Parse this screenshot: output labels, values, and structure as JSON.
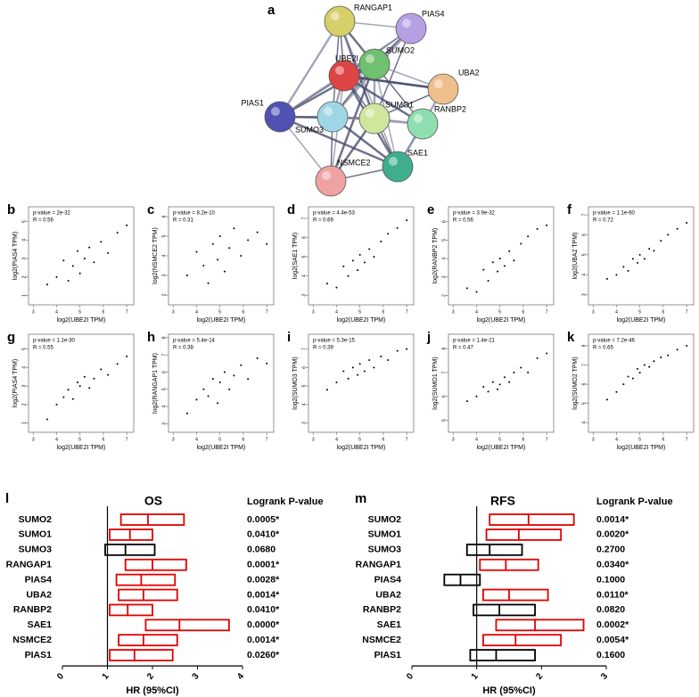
{
  "network": {
    "panel": "a",
    "nodes": [
      {
        "label": "RANGAP1"
      },
      {
        "label": "PIAS4"
      },
      {
        "label": "SUMO2"
      },
      {
        "label": "UBE2I"
      },
      {
        "label": "UBA2"
      },
      {
        "label": "PIAS1"
      },
      {
        "label": "SUMO3"
      },
      {
        "label": "SUMO1"
      },
      {
        "label": "RANBP2"
      },
      {
        "label": "NSMCE2"
      },
      {
        "label": "SAE1"
      }
    ]
  },
  "chart_data": [
    {
      "type": "scatter",
      "panel": "b",
      "annotations": [
        "p-value = 2e-32",
        "R = 0.56"
      ],
      "x_label": "log2(UBE2I TPM)",
      "y_label": "log2(PIAS4 TPM)",
      "xlim": [
        2.8,
        7.3
      ],
      "xticks": [
        3,
        4,
        5,
        6,
        7
      ],
      "ylim": [
        0.5,
        5.8
      ],
      "yticks": [
        1,
        2,
        3,
        4,
        5
      ],
      "x": [
        3.6,
        4.0,
        4.3,
        4.5,
        4.7,
        4.9,
        5.0,
        5.2,
        5.4,
        5.6,
        5.9,
        6.2,
        6.6,
        7.0
      ],
      "values": [
        1.6,
        2.0,
        2.9,
        1.8,
        2.6,
        3.4,
        2.2,
        3.0,
        3.6,
        2.8,
        3.9,
        3.3,
        4.4,
        4.8
      ]
    },
    {
      "type": "scatter",
      "panel": "c",
      "annotations": [
        "p-value = 8.2e-10",
        "R = 0.31"
      ],
      "x_label": "log2(UBE2I TPM)",
      "y_label": "log2(NSMCE2 TPM)",
      "xlim": [
        2.8,
        7.3
      ],
      "xticks": [
        3,
        4,
        5,
        6,
        7
      ],
      "ylim": [
        1.5,
        6.5
      ],
      "yticks": [
        2,
        3,
        4,
        5,
        6
      ],
      "x": [
        3.6,
        4.0,
        4.3,
        4.5,
        4.7,
        4.9,
        5.0,
        5.2,
        5.4,
        5.6,
        5.9,
        6.2,
        6.6,
        7.0
      ],
      "values": [
        3.0,
        4.2,
        3.5,
        2.6,
        4.6,
        3.8,
        5.0,
        3.2,
        4.4,
        5.4,
        4.0,
        4.8,
        5.2,
        4.6
      ]
    },
    {
      "type": "scatter",
      "panel": "d",
      "annotations": [
        "p-value = 4.4e-53",
        "R = 0.69"
      ],
      "x_label": "log2(UBE2I TPM)",
      "y_label": "log2(SAE1 TPM)",
      "xlim": [
        2.8,
        7.3
      ],
      "xticks": [
        3,
        4,
        5,
        6,
        7
      ],
      "ylim": [
        2.5,
        7.6
      ],
      "yticks": [
        3,
        4,
        5,
        6,
        7
      ],
      "x": [
        3.6,
        4.0,
        4.3,
        4.5,
        4.7,
        4.9,
        5.0,
        5.2,
        5.4,
        5.6,
        5.9,
        6.2,
        6.6,
        7.0
      ],
      "values": [
        3.6,
        3.4,
        4.5,
        4.0,
        4.8,
        4.3,
        5.1,
        4.7,
        5.4,
        5.0,
        5.8,
        6.2,
        6.5,
        6.9
      ]
    },
    {
      "type": "scatter",
      "panel": "e",
      "annotations": [
        "p-value = 3.9e-32",
        "R = 0.56"
      ],
      "x_label": "log2(UBE2I TPM)",
      "y_label": "log2(RANBP2 TPM)",
      "xlim": [
        2.8,
        7.3
      ],
      "xticks": [
        3,
        4,
        5,
        6,
        7
      ],
      "ylim": [
        1.5,
        6.8
      ],
      "yticks": [
        2,
        3,
        4,
        5,
        6
      ],
      "x": [
        3.6,
        4.0,
        4.3,
        4.5,
        4.7,
        4.9,
        5.0,
        5.2,
        5.4,
        5.6,
        5.9,
        6.2,
        6.6,
        7.0
      ],
      "values": [
        2.4,
        2.2,
        3.4,
        2.8,
        3.8,
        3.3,
        4.0,
        3.6,
        4.4,
        3.9,
        4.8,
        5.2,
        5.6,
        5.8
      ]
    },
    {
      "type": "scatter",
      "panel": "f",
      "annotations": [
        "p-value = 1.1e-60",
        "R = 0.72"
      ],
      "x_label": "log2(UBE2I TPM)",
      "y_label": "log2(UBA2 TPM)",
      "xlim": [
        2.8,
        7.3
      ],
      "xticks": [
        3,
        4,
        5,
        6,
        7
      ],
      "ylim": [
        2.5,
        7.4
      ],
      "yticks": [
        3,
        4,
        5,
        6,
        7
      ],
      "x": [
        3.6,
        4.0,
        4.3,
        4.5,
        4.7,
        4.9,
        5.0,
        5.2,
        5.4,
        5.6,
        5.9,
        6.2,
        6.6,
        7.0
      ],
      "values": [
        3.8,
        4.0,
        4.4,
        4.2,
        4.8,
        4.6,
        5.0,
        4.8,
        5.3,
        5.2,
        5.7,
        6.0,
        6.3,
        6.6
      ]
    },
    {
      "type": "scatter",
      "panel": "g",
      "annotations": [
        "p-value = 1.1e-30",
        "R = 0.55"
      ],
      "x_label": "log2(UBE2I TPM)",
      "y_label": "log2(PIAS4 TPM)",
      "xlim": [
        2.8,
        7.3
      ],
      "xticks": [
        3,
        4,
        5,
        6,
        7
      ],
      "ylim": [
        0.5,
        5.8
      ],
      "yticks": [
        1,
        2,
        3,
        4,
        5
      ],
      "x": [
        3.6,
        4.0,
        4.3,
        4.5,
        4.7,
        4.9,
        5.0,
        5.2,
        5.4,
        5.6,
        5.9,
        6.2,
        6.6,
        7.0
      ],
      "values": [
        1.2,
        2.0,
        2.4,
        2.8,
        2.3,
        3.2,
        3.0,
        3.5,
        2.9,
        3.4,
        3.9,
        3.6,
        4.2,
        4.6
      ]
    },
    {
      "type": "scatter",
      "panel": "h",
      "annotations": [
        "p-value = 5.4e-14",
        "R = 0.38"
      ],
      "x_label": "log2(UBE2I TPM)",
      "y_label": "log2(RANGAP1 TPM)",
      "xlim": [
        2.8,
        7.3
      ],
      "xticks": [
        3,
        4,
        5,
        6,
        7
      ],
      "ylim": [
        2.5,
        8.2
      ],
      "yticks": [
        3,
        4,
        5,
        6,
        7,
        8
      ],
      "x": [
        3.6,
        4.0,
        4.3,
        4.5,
        4.7,
        4.9,
        5.0,
        5.2,
        5.4,
        5.6,
        5.9,
        6.2,
        6.6,
        7.0
      ],
      "values": [
        3.6,
        4.4,
        5.0,
        4.6,
        5.6,
        4.2,
        5.4,
        6.0,
        5.0,
        5.8,
        6.4,
        5.6,
        6.8,
        6.5
      ]
    },
    {
      "type": "scatter",
      "panel": "i",
      "annotations": [
        "p-value = 5.3e-15",
        "R = 0.39"
      ],
      "x_label": "log2(UBE2I TPM)",
      "y_label": "log2(SUMO3 TPM)",
      "xlim": [
        2.8,
        7.3
      ],
      "xticks": [
        3,
        4,
        5,
        6,
        7
      ],
      "ylim": [
        2.5,
        7.8
      ],
      "yticks": [
        3,
        4,
        5,
        6,
        7
      ],
      "x": [
        3.6,
        4.0,
        4.3,
        4.5,
        4.7,
        4.9,
        5.0,
        5.2,
        5.4,
        5.6,
        5.9,
        6.2,
        6.6,
        7.0
      ],
      "values": [
        4.8,
        5.2,
        5.8,
        5.4,
        6.0,
        5.6,
        6.2,
        5.8,
        6.4,
        6.0,
        6.6,
        6.4,
        6.9,
        7.0
      ]
    },
    {
      "type": "scatter",
      "panel": "j",
      "annotations": [
        "p-value = 1.4e-21",
        "R = 0.47"
      ],
      "x_label": "log2(UBE2I TPM)",
      "y_label": "log2(SUMO1 TPM)",
      "xlim": [
        2.8,
        7.3
      ],
      "xticks": [
        3,
        4,
        5,
        6,
        7
      ],
      "ylim": [
        4.5,
        8.6
      ],
      "yticks": [
        5,
        6,
        7,
        8
      ],
      "x": [
        3.6,
        4.0,
        4.3,
        4.5,
        4.7,
        4.9,
        5.0,
        5.2,
        5.4,
        5.6,
        5.9,
        6.2,
        6.6,
        7.0
      ],
      "values": [
        5.8,
        6.0,
        6.4,
        6.2,
        6.6,
        6.3,
        6.5,
        6.8,
        6.6,
        7.0,
        7.2,
        7.0,
        7.6,
        7.8
      ]
    },
    {
      "type": "scatter",
      "panel": "k",
      "annotations": [
        "p-value = 7.2e-46",
        "R = 0.65"
      ],
      "x_label": "log2(UBE2I TPM)",
      "y_label": "log2(SUMO2 TPM)",
      "xlim": [
        2.8,
        7.3
      ],
      "xticks": [
        3,
        4,
        5,
        6,
        7
      ],
      "ylim": [
        3.5,
        8.6
      ],
      "yticks": [
        4,
        5,
        6,
        7,
        8
      ],
      "x": [
        3.6,
        4.0,
        4.3,
        4.5,
        4.7,
        4.9,
        5.0,
        5.2,
        5.4,
        5.6,
        5.9,
        6.2,
        6.6,
        7.0
      ],
      "values": [
        5.2,
        5.6,
        6.0,
        6.4,
        6.3,
        6.8,
        6.6,
        7.0,
        6.9,
        7.2,
        7.4,
        7.5,
        7.8,
        8.0
      ]
    },
    {
      "type": "forest",
      "panel": "l",
      "title": "OS",
      "p_header": "Logrank P-value",
      "x_label": "HR (95%CI)",
      "xlim": [
        0,
        4
      ],
      "xticks": [
        0,
        1,
        2,
        3,
        4
      ],
      "reference_line": 1,
      "categories": [
        "SUMO2",
        "SUMO1",
        "SUMO3",
        "RANGAP1",
        "PIAS4",
        "UBA2",
        "RANBP2",
        "SAE1",
        "NSMCE2",
        "PIAS1"
      ],
      "ci_low": [
        1.3,
        1.05,
        0.95,
        1.4,
        1.2,
        1.25,
        1.05,
        1.85,
        1.25,
        1.05
      ],
      "hr": [
        1.9,
        1.5,
        1.4,
        2.0,
        1.75,
        1.8,
        1.45,
        2.6,
        1.8,
        1.6
      ],
      "ci_high": [
        2.7,
        2.0,
        2.05,
        2.75,
        2.5,
        2.55,
        2.0,
        3.7,
        2.55,
        2.45
      ],
      "colors": [
        "#e00000",
        "#e00000",
        "#000000",
        "#e00000",
        "#e00000",
        "#e00000",
        "#e00000",
        "#e00000",
        "#e00000",
        "#e00000"
      ],
      "p_values": [
        "0.0005*",
        "0.0410*",
        "0.0680",
        "0.0001*",
        "0.0028*",
        "0.0014*",
        "0.0410*",
        "0.0000*",
        "0.0014*",
        "0.0260*"
      ]
    },
    {
      "type": "forest",
      "panel": "m",
      "title": "RFS",
      "p_header": "Logrank P-value",
      "x_label": "HR (95%CI)",
      "xlim": [
        0,
        3
      ],
      "xticks": [
        0,
        1,
        2,
        3
      ],
      "reference_line": 1,
      "categories": [
        "SUMO2",
        "SUMO1",
        "SUMO3",
        "RANGAP1",
        "PIAS4",
        "UBA2",
        "RANBP2",
        "SAE1",
        "NSMCE2",
        "PIAS1"
      ],
      "ci_low": [
        1.2,
        1.15,
        0.85,
        1.05,
        0.5,
        1.1,
        0.95,
        1.3,
        1.1,
        0.9
      ],
      "hr": [
        1.8,
        1.65,
        1.2,
        1.45,
        0.75,
        1.5,
        1.35,
        1.9,
        1.6,
        1.3
      ],
      "ci_high": [
        2.5,
        2.3,
        1.7,
        1.95,
        1.05,
        2.1,
        1.9,
        2.65,
        2.3,
        1.9
      ],
      "colors": [
        "#e00000",
        "#e00000",
        "#000000",
        "#e00000",
        "#000000",
        "#e00000",
        "#000000",
        "#e00000",
        "#e00000",
        "#000000"
      ],
      "p_values": [
        "0.0014*",
        "0.0020*",
        "0.2700",
        "0.0340*",
        "0.1000",
        "0.0110*",
        "0.0820",
        "0.0002*",
        "0.0054*",
        "0.1600"
      ]
    }
  ]
}
